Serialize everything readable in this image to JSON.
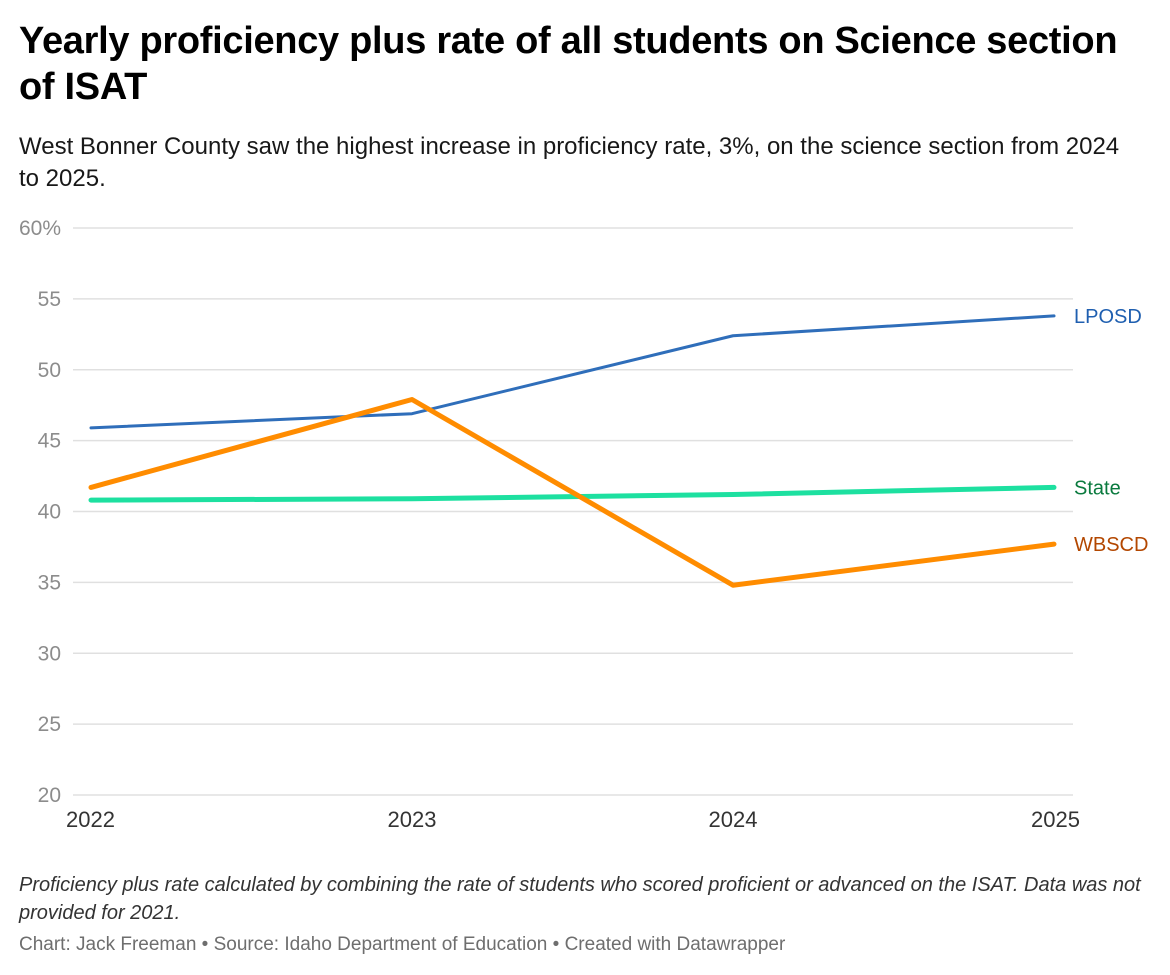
{
  "header": {
    "title": "Yearly proficiency plus rate of all students on Science section of ISAT",
    "subtitle": "West Bonner County saw the highest increase in proficiency rate, 3%, on the science section from 2024 to 2025."
  },
  "footer": {
    "note": "Proficiency plus rate calculated by combining the rate of students who scored proficient or advanced on the ISAT. Data was not provided for 2021.",
    "byline": "Chart: Jack Freeman • Source: Idaho Department of Education • Created with Datawrapper"
  },
  "chart_data": {
    "type": "line",
    "title": "Yearly proficiency plus rate of all students on Science section of ISAT",
    "subtitle": "West Bonner County saw the highest increase in proficiency rate, 3%, on the science section from 2024 to 2025.",
    "xlabel": "",
    "ylabel": "",
    "x": [
      "2022",
      "2023",
      "2024",
      "2025"
    ],
    "ylim": [
      20,
      60
    ],
    "yticks": [
      20,
      25,
      30,
      35,
      40,
      45,
      50,
      55,
      60
    ],
    "ytick_labels": [
      "20",
      "25",
      "30",
      "35",
      "40",
      "45",
      "50",
      "55",
      "60%"
    ],
    "grid": true,
    "legend": "direct labels at line ends (right)",
    "series": [
      {
        "name": "LPOSD",
        "values": [
          45.9,
          46.9,
          52.4,
          53.8
        ],
        "color": "#2f6eba",
        "label_color": "#1f5fb0"
      },
      {
        "name": "State",
        "values": [
          40.8,
          40.9,
          41.2,
          41.7
        ],
        "color": "#1de0a0",
        "label_color": "#0a7a3e"
      },
      {
        "name": "WBSCD",
        "values": [
          41.7,
          47.9,
          34.8,
          37.7
        ],
        "color": "#ff8c00",
        "label_color": "#b34700"
      }
    ]
  }
}
